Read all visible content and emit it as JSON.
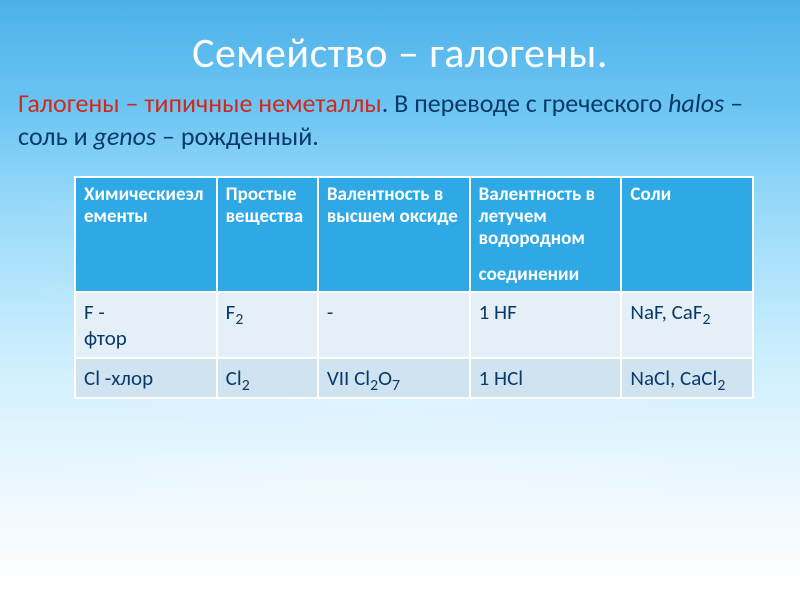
{
  "title": "Семейство – галогены.",
  "subtitle": {
    "part1_red": "Галогены – типичные неметаллы",
    "part2": ". В переводе с греческого ",
    "halos_it": "halos",
    "part3": " – соль и ",
    "genos_it": "genos",
    "part4": " – рожденный."
  },
  "table": {
    "headers": {
      "c1": "Химическиеэлементы",
      "c2": "Простые вещества",
      "c3": "Валентность в высшем оксиде",
      "c4": "Валентность в летучем водородном",
      "c4b": "соединении",
      "c5": "Соли"
    },
    "rows": [
      {
        "elem_pre": "F - ",
        "elem_name": "фтор",
        "simple": "F",
        "simple_sub": "2",
        "oxide": "-",
        "hydride_pre": "1  HF",
        "salts_pre": "NaF, CaF",
        "salts_sub": "2"
      },
      {
        "elem_pre": "Cl -",
        "elem_name": "хлор",
        "simple": "Cl",
        "simple_sub": "2",
        "oxide_pre": "VII   Cl",
        "oxide_sub1": "2",
        "oxide_mid": "O",
        "oxide_sub2": "7",
        "hydride_pre": "1  HCl",
        "salts_pre": "NaCl, CaCl",
        "salts_sub": "2"
      }
    ]
  },
  "colors": {
    "title": "#ffffff",
    "text": "#0a3a6a",
    "accent_red": "#d02a1e",
    "header_bg": "#2ea9e6",
    "rowA_bg": "#e5eff7",
    "rowB_bg": "#cfe3f0"
  }
}
